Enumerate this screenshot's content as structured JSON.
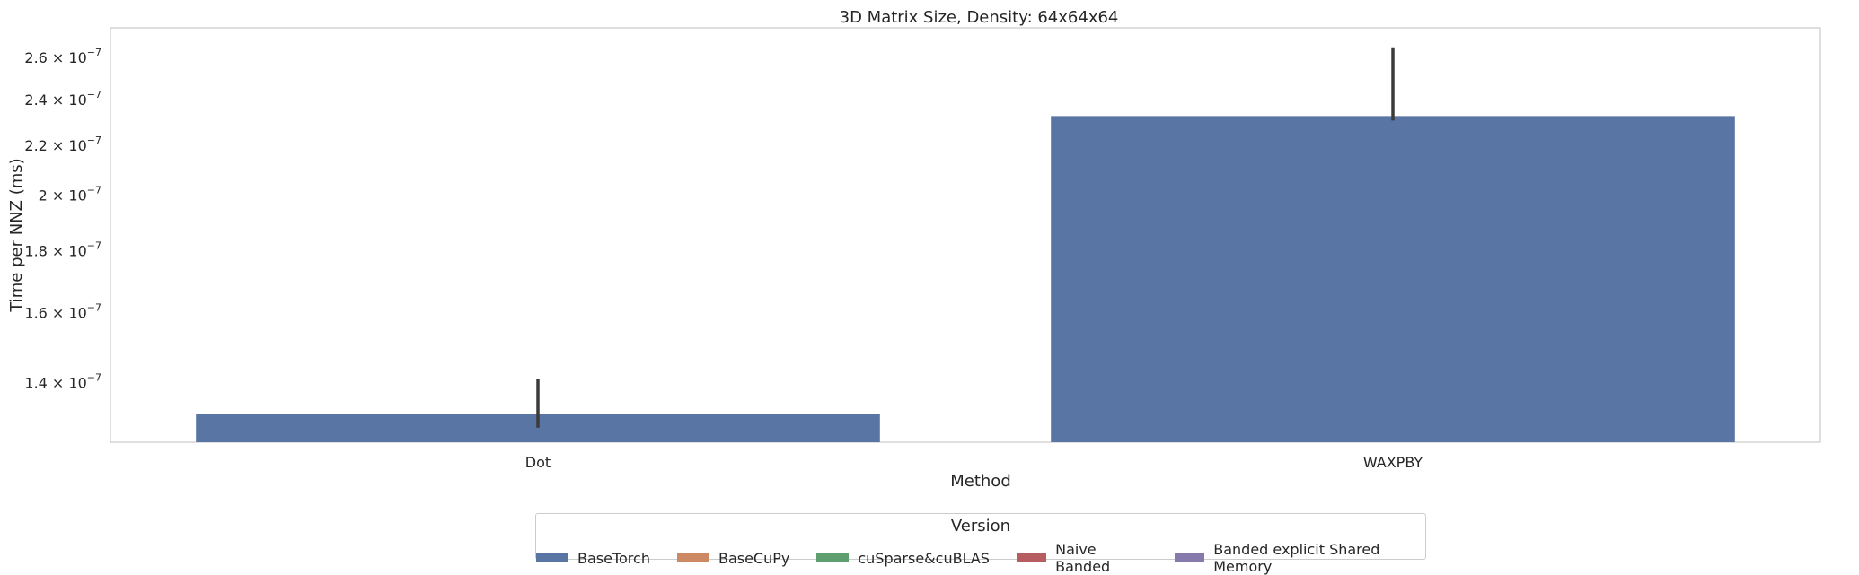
{
  "chart_data": {
    "type": "bar",
    "title": "3D Matrix Size, Density: 64x64x64",
    "xlabel": "Method",
    "ylabel": "Time per NNZ (ms)",
    "yscale": "log",
    "ylim": [
      1.25e-07,
      2.75e-07
    ],
    "categories": [
      "Dot",
      "WAXPBY"
    ],
    "series": [
      {
        "name": "BaseTorch",
        "color": "#5875a4",
        "values": [
          1.32e-07,
          2.325e-07
        ],
        "error_low": [
          1.285e-07,
          2.305e-07
        ],
        "error_high": [
          1.41e-07,
          2.65e-07
        ]
      }
    ],
    "yticks": [
      {
        "value": 1.4e-07,
        "mantissa": "1.4"
      },
      {
        "value": 1.6e-07,
        "mantissa": "1.6"
      },
      {
        "value": 1.8e-07,
        "mantissa": "1.8"
      },
      {
        "value": 2e-07,
        "mantissa": "2"
      },
      {
        "value": 2.2e-07,
        "mantissa": "2.2"
      },
      {
        "value": 2.4e-07,
        "mantissa": "2.4"
      },
      {
        "value": 2.6e-07,
        "mantissa": "2.6"
      }
    ],
    "ytick_base": "10",
    "ytick_exponent": "−7",
    "grid": false,
    "legend": {
      "title": "Version",
      "position": "bottom-center",
      "entries": [
        {
          "label": "BaseTorch",
          "color": "#5875a4"
        },
        {
          "label": "BaseCuPy",
          "color": "#cc8963"
        },
        {
          "label": "cuSparse&cuBLAS",
          "color": "#5f9e6e"
        },
        {
          "label": "Naive Banded",
          "color": "#b55d60"
        },
        {
          "label": "Banded explicit Shared Memory",
          "color": "#857aab"
        }
      ]
    }
  }
}
